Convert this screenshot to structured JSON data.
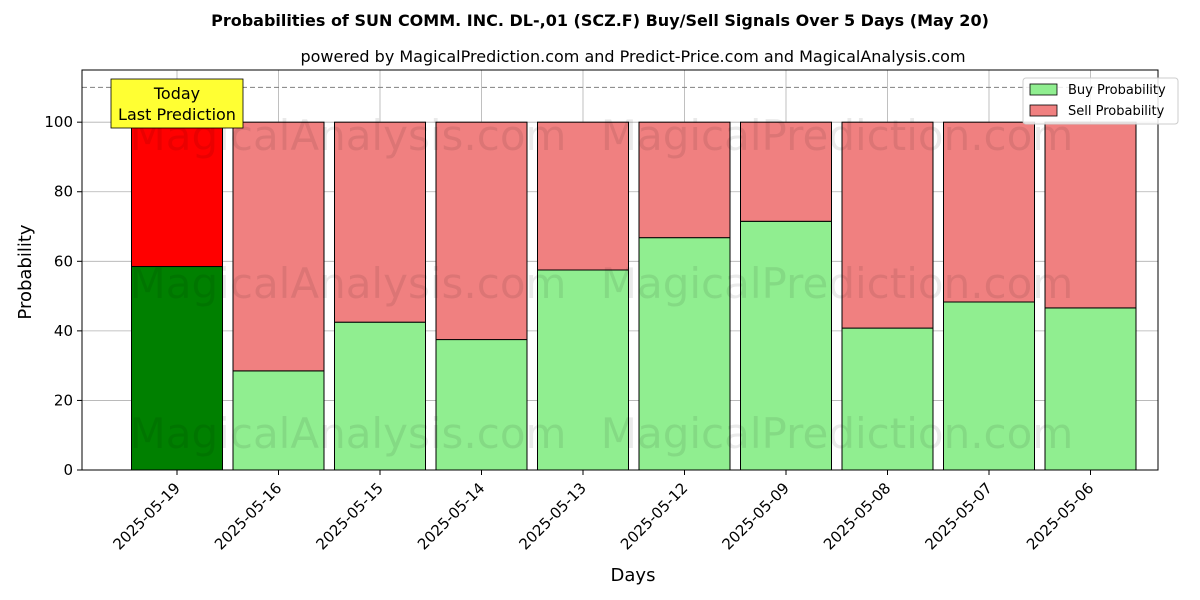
{
  "chart_data": {
    "type": "bar",
    "stacked": true,
    "title": "Probabilities of SUN COMM. INC.  DL-,01 (SCZ.F) Buy/Sell Signals Over 5 Days (May 20)",
    "subtitle": "powered by MagicalPrediction.com and Predict-Price.com and MagicalAnalysis.com",
    "xlabel": "Days",
    "ylabel": "Probability",
    "ylim": [
      0,
      115
    ],
    "yticks": [
      0,
      20,
      40,
      60,
      80,
      100
    ],
    "grid": true,
    "legend_position": "top-right",
    "categories": [
      "2025-05-19",
      "2025-05-16",
      "2025-05-15",
      "2025-05-14",
      "2025-05-13",
      "2025-05-12",
      "2025-05-09",
      "2025-05-08",
      "2025-05-07",
      "2025-05-06"
    ],
    "series": [
      {
        "name": "Buy Probability",
        "values": [
          58.5,
          28.5,
          42.5,
          37.5,
          57.5,
          66.8,
          71.5,
          40.8,
          48.3,
          46.6
        ],
        "color": "#90ee90",
        "highlight_color": "#008000"
      },
      {
        "name": "Sell Probability",
        "values": [
          41.5,
          71.5,
          57.5,
          62.5,
          42.5,
          33.2,
          28.5,
          59.2,
          51.7,
          53.4
        ],
        "color": "#f08080",
        "highlight_color": "#ff0000"
      }
    ],
    "reference_line": {
      "y": 110,
      "style": "dashed",
      "color": "#808080"
    },
    "annotation": {
      "lines": [
        "Today",
        "Last Prediction"
      ],
      "category_index": 0,
      "background": "#ffff33"
    },
    "watermarks": [
      "MagicalAnalysis.com",
      "MagicalPrediction.com"
    ]
  }
}
